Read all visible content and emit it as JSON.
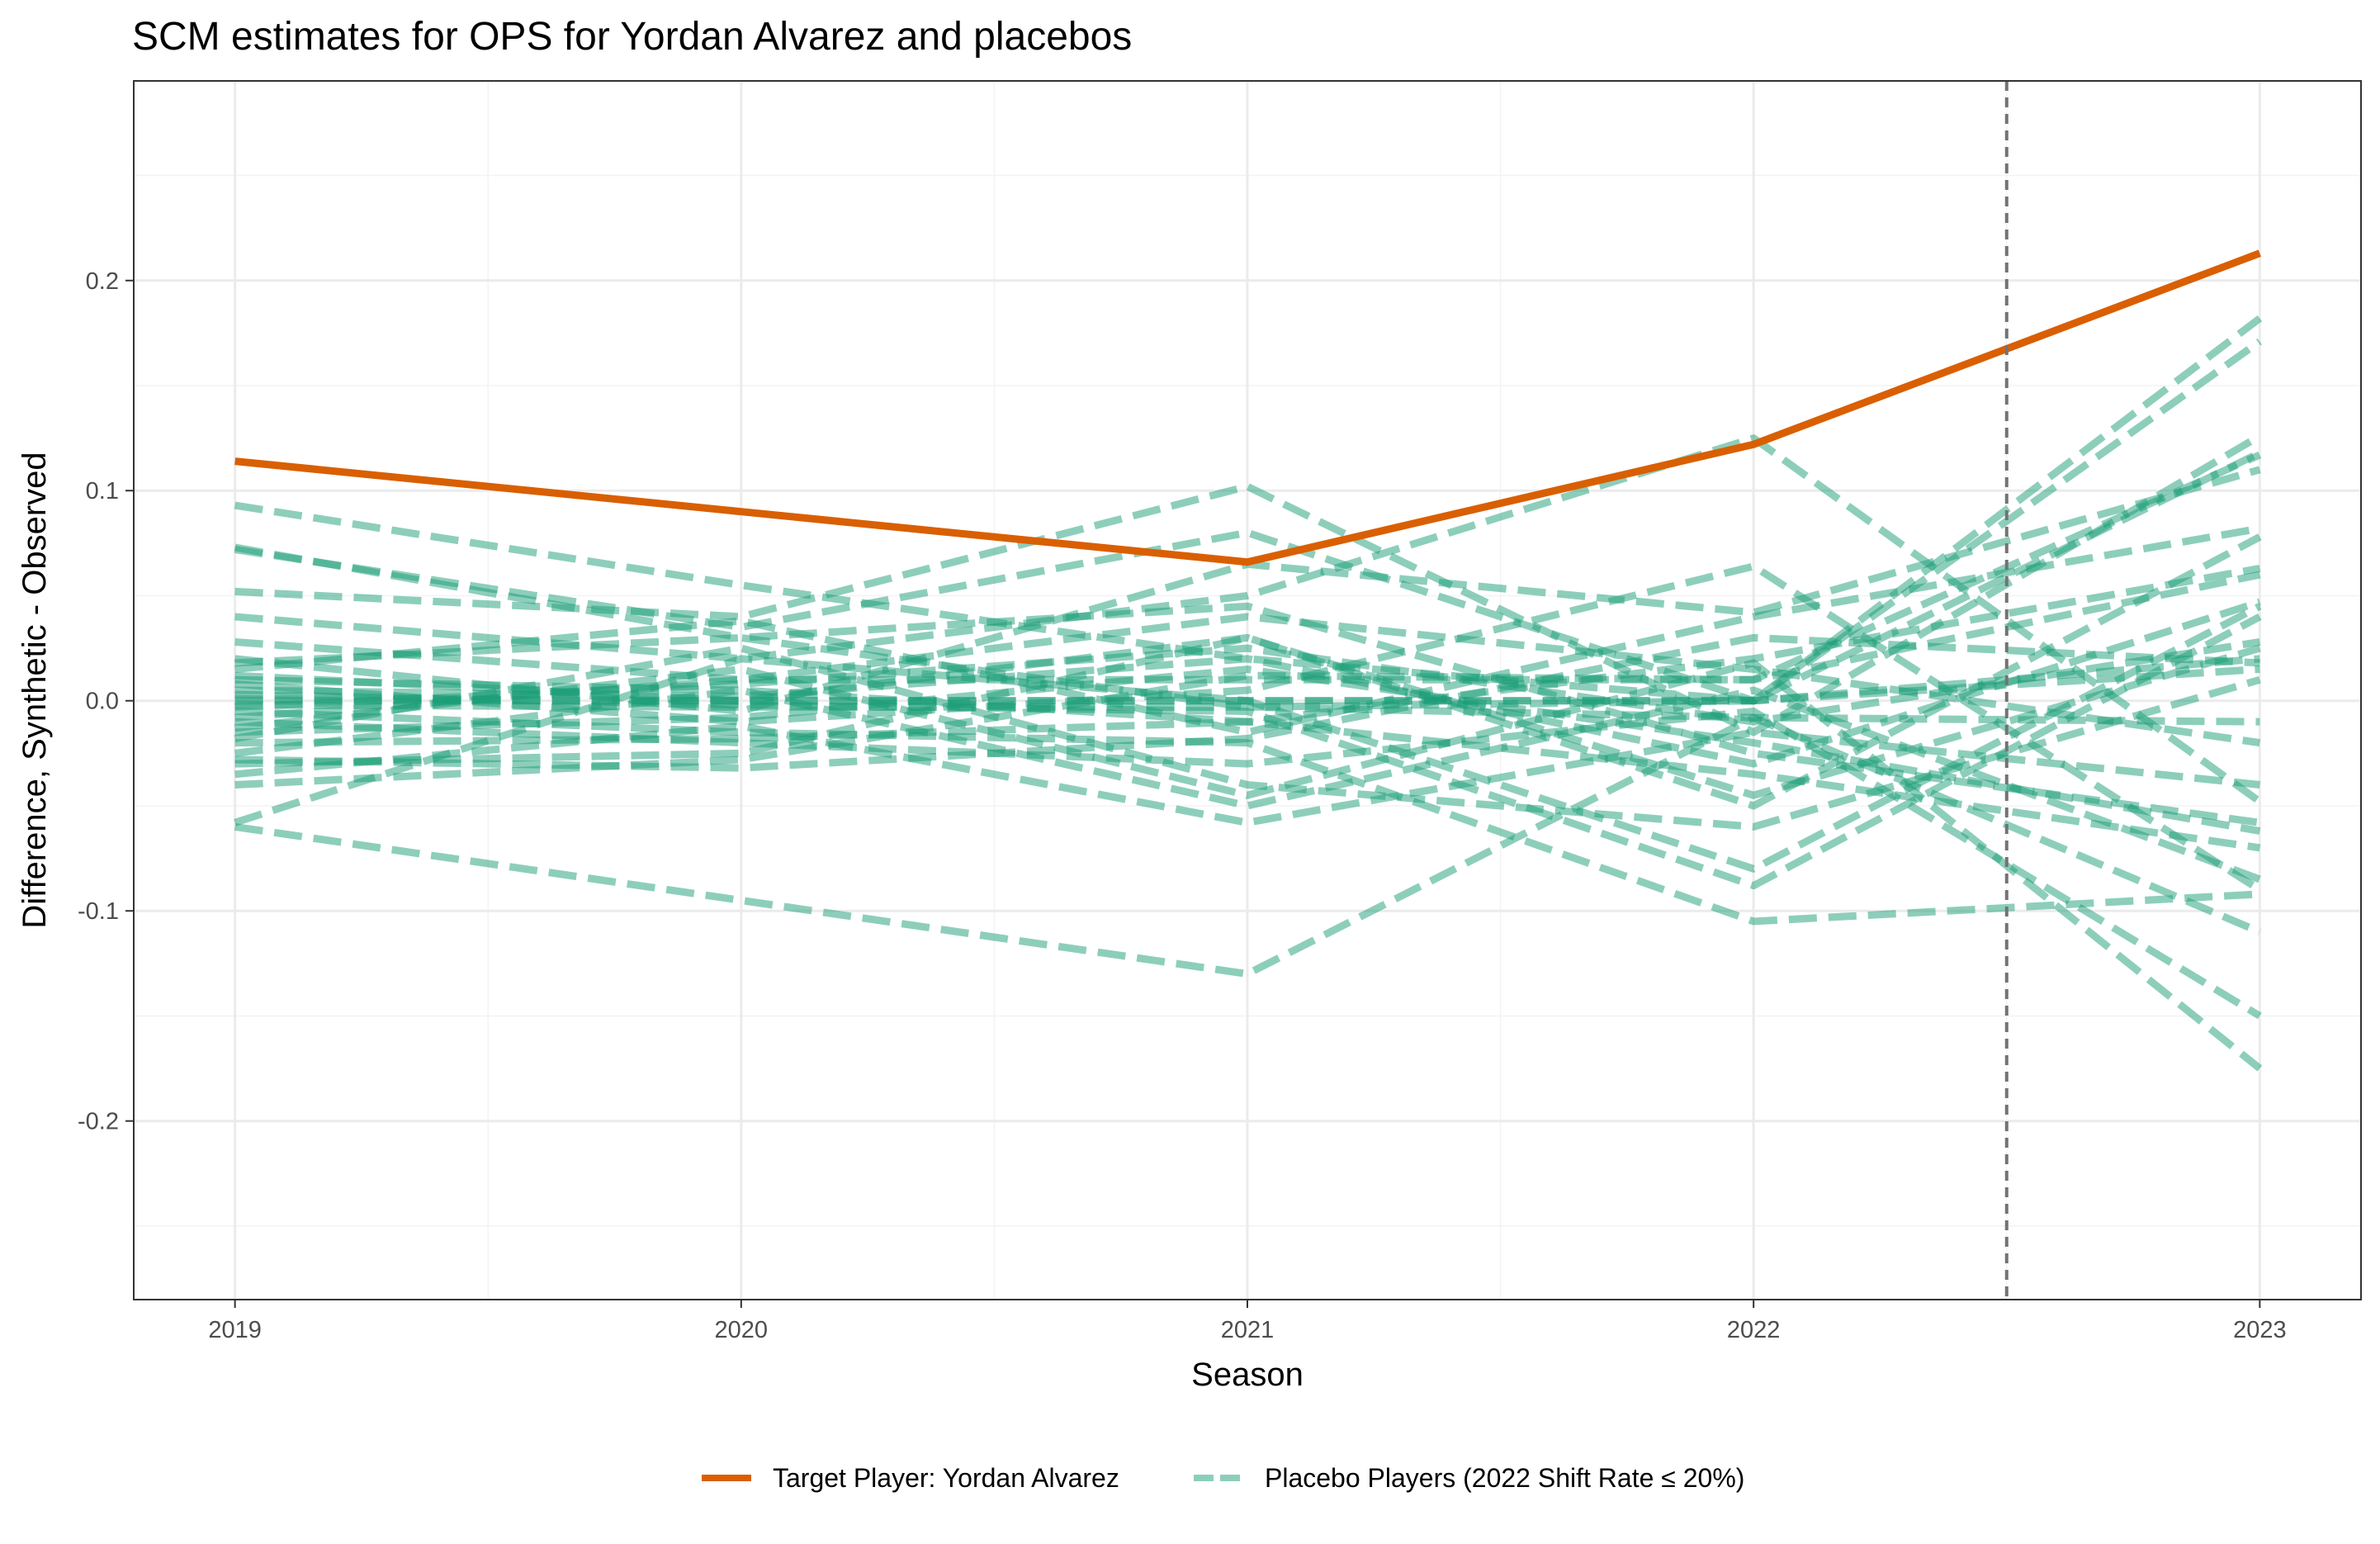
{
  "chart_data": {
    "type": "line",
    "title": "SCM estimates for OPS for Yordan Alvarez and placebos",
    "xlabel": "Season",
    "ylabel": "Difference, Synthetic - Observed",
    "x": [
      2019,
      2020,
      2021,
      2022,
      2023
    ],
    "x_ticks": [
      "2019",
      "2020",
      "2021",
      "2022",
      "2023"
    ],
    "xlim": [
      2018.8,
      2023.2
    ],
    "ylim": [
      -0.285,
      0.295
    ],
    "y_ticks": [
      {
        "value": -0.2,
        "label": "-0.2"
      },
      {
        "value": -0.1,
        "label": "-0.1"
      },
      {
        "value": 0.0,
        "label": "0.0"
      },
      {
        "value": 0.1,
        "label": "0.1"
      },
      {
        "value": 0.2,
        "label": "0.2"
      }
    ],
    "grid": true,
    "treatment_line_x": 2022.5,
    "legend_position": "bottom",
    "colors": {
      "target": "#d95f02",
      "placebo": "#1b9e77",
      "grid": "#ebebeb",
      "vline": "#737373"
    },
    "target_series": {
      "name": "Target Player: Yordan Alvarez",
      "values": [
        0.114,
        0.09,
        0.066,
        0.122,
        0.213
      ]
    },
    "placebo_legend": "Placebo Players (2022 Shift Rate ≤ 20%)",
    "placebo_series": [
      {
        "values": [
          0.093,
          0.055,
          0.02,
          0.0,
          0.118
        ]
      },
      {
        "values": [
          0.073,
          0.03,
          -0.003,
          0.0,
          0.182
        ]
      },
      {
        "values": [
          0.072,
          0.035,
          0.08,
          0.0,
          0.171
        ]
      },
      {
        "values": [
          0.052,
          0.04,
          0.102,
          -0.015,
          0.126
        ]
      },
      {
        "values": [
          0.04,
          0.02,
          0.05,
          0.125,
          -0.048
        ]
      },
      {
        "values": [
          0.028,
          0.01,
          0.01,
          0.01,
          0.117
        ]
      },
      {
        "values": [
          0.02,
          -0.005,
          0.065,
          0.042,
          0.11
        ]
      },
      {
        "values": [
          0.015,
          0.038,
          -0.015,
          0.04,
          0.082
        ]
      },
      {
        "values": [
          0.012,
          0.0,
          0.03,
          -0.05,
          0.078
        ]
      },
      {
        "values": [
          0.01,
          0.005,
          -0.01,
          0.02,
          0.063
        ]
      },
      {
        "values": [
          0.008,
          -0.01,
          0.005,
          0.064,
          -0.09
        ]
      },
      {
        "values": [
          0.005,
          0.002,
          0.02,
          -0.03,
          0.047
        ]
      },
      {
        "values": [
          0.003,
          -0.002,
          -0.005,
          -0.088,
          0.04
        ]
      },
      {
        "values": [
          0.001,
          0.0,
          0.0,
          0.0,
          0.02
        ]
      },
      {
        "values": [
          0.0,
          0.0,
          0.0,
          0.0,
          0.015
        ]
      },
      {
        "values": [
          -0.002,
          -0.003,
          -0.003,
          -0.008,
          -0.01
        ]
      },
      {
        "values": [
          -0.003,
          0.008,
          0.025,
          -0.01,
          0.028
        ]
      },
      {
        "values": [
          -0.005,
          -0.015,
          -0.02,
          -0.105,
          -0.092
        ]
      },
      {
        "values": [
          -0.008,
          0.01,
          0.04,
          0.015,
          -0.02
        ]
      },
      {
        "values": [
          -0.01,
          -0.02,
          -0.03,
          -0.005,
          -0.15
        ]
      },
      {
        "values": [
          -0.013,
          0.015,
          -0.045,
          0.018,
          -0.175
        ]
      },
      {
        "values": [
          -0.015,
          -0.008,
          0.015,
          -0.02,
          -0.062
        ]
      },
      {
        "values": [
          -0.018,
          0.025,
          -0.04,
          -0.06,
          0.01
        ]
      },
      {
        "values": [
          -0.02,
          -0.018,
          -0.01,
          -0.035,
          -0.07
        ]
      },
      {
        "values": [
          -0.025,
          0.005,
          -0.05,
          0.005,
          -0.085
        ]
      },
      {
        "values": [
          -0.03,
          -0.025,
          0.03,
          -0.045,
          0.025
        ]
      },
      {
        "values": [
          -0.035,
          -0.012,
          -0.058,
          -0.015,
          -0.04
        ]
      },
      {
        "values": [
          -0.04,
          -0.028,
          0.012,
          0.01,
          0.06
        ]
      },
      {
        "values": [
          -0.06,
          -0.095,
          -0.13,
          -0.008,
          -0.11
        ]
      },
      {
        "values": [
          -0.058,
          0.02,
          0.0,
          -0.08,
          0.045
        ]
      },
      {
        "values": [
          0.018,
          0.03,
          0.045,
          -0.025,
          -0.058
        ]
      },
      {
        "values": [
          -0.028,
          -0.032,
          -0.018,
          0.03,
          0.018
        ]
      }
    ]
  }
}
